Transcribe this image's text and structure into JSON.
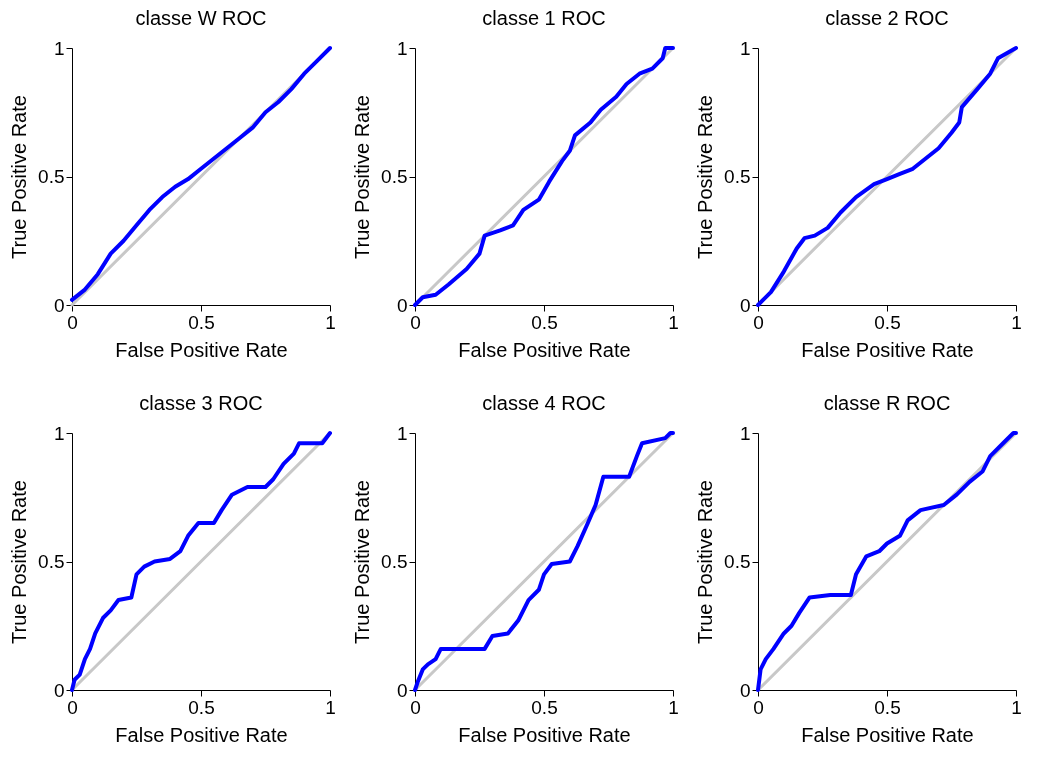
{
  "chart_data": [
    {
      "type": "line",
      "title": "classe W ROC",
      "xlabel": "False Positive Rate",
      "ylabel": "True Positive Rate",
      "xlim": [
        0,
        1
      ],
      "ylim": [
        0,
        1
      ],
      "xticks": [
        0,
        0.5,
        1
      ],
      "yticks": [
        0,
        0.5,
        1
      ],
      "series": [
        {
          "color": "#c8c8c8",
          "x": [
            0,
            1
          ],
          "values": [
            0,
            1
          ]
        },
        {
          "color": "#0000ff",
          "x": [
            0,
            0.05,
            0.1,
            0.15,
            0.2,
            0.25,
            0.3,
            0.35,
            0.4,
            0.45,
            0.5,
            0.55,
            0.6,
            0.65,
            0.7,
            0.75,
            0.8,
            0.85,
            0.9,
            0.95,
            1
          ],
          "values": [
            0.02,
            0.06,
            0.12,
            0.2,
            0.25,
            0.31,
            0.37,
            0.42,
            0.46,
            0.49,
            0.53,
            0.57,
            0.61,
            0.65,
            0.69,
            0.75,
            0.79,
            0.84,
            0.9,
            0.95,
            1
          ]
        }
      ]
    },
    {
      "type": "line",
      "title": "classe 1 ROC",
      "xlabel": "False Positive Rate",
      "ylabel": "True Positive Rate",
      "xlim": [
        0,
        1
      ],
      "ylim": [
        0,
        1
      ],
      "xticks": [
        0,
        0.5,
        1
      ],
      "yticks": [
        0,
        0.5,
        1
      ],
      "series": [
        {
          "color": "#c8c8c8",
          "x": [
            0,
            1
          ],
          "values": [
            0,
            1
          ]
        },
        {
          "color": "#0000ff",
          "x": [
            0,
            0.03,
            0.08,
            0.13,
            0.2,
            0.25,
            0.27,
            0.33,
            0.38,
            0.42,
            0.48,
            0.52,
            0.57,
            0.6,
            0.62,
            0.68,
            0.72,
            0.78,
            0.82,
            0.87,
            0.92,
            0.96,
            0.97,
            1
          ],
          "values": [
            0,
            0.03,
            0.04,
            0.08,
            0.14,
            0.2,
            0.27,
            0.29,
            0.31,
            0.37,
            0.41,
            0.48,
            0.56,
            0.6,
            0.66,
            0.71,
            0.76,
            0.81,
            0.86,
            0.9,
            0.92,
            0.96,
            1,
            1
          ]
        }
      ]
    },
    {
      "type": "line",
      "title": "classe 2 ROC",
      "xlabel": "False Positive Rate",
      "ylabel": "True Positive Rate",
      "xlim": [
        0,
        1
      ],
      "ylim": [
        0,
        1
      ],
      "xticks": [
        0,
        0.5,
        1
      ],
      "yticks": [
        0,
        0.5,
        1
      ],
      "series": [
        {
          "color": "#c8c8c8",
          "x": [
            0,
            1
          ],
          "values": [
            0,
            1
          ]
        },
        {
          "color": "#0000ff",
          "x": [
            0,
            0.05,
            0.1,
            0.15,
            0.18,
            0.22,
            0.27,
            0.32,
            0.38,
            0.45,
            0.5,
            0.55,
            0.6,
            0.65,
            0.7,
            0.75,
            0.78,
            0.79,
            0.85,
            0.9,
            0.93,
            1
          ],
          "values": [
            0,
            0.05,
            0.13,
            0.22,
            0.26,
            0.27,
            0.3,
            0.36,
            0.42,
            0.47,
            0.49,
            0.51,
            0.53,
            0.57,
            0.61,
            0.67,
            0.71,
            0.77,
            0.84,
            0.9,
            0.96,
            1
          ]
        }
      ]
    },
    {
      "type": "line",
      "title": "classe 3 ROC",
      "xlabel": "False Positive Rate",
      "ylabel": "True Positive Rate",
      "xlim": [
        0,
        1
      ],
      "ylim": [
        0,
        1
      ],
      "xticks": [
        0,
        0.5,
        1
      ],
      "yticks": [
        0,
        0.5,
        1
      ],
      "series": [
        {
          "color": "#c8c8c8",
          "x": [
            0,
            1
          ],
          "values": [
            0,
            1
          ]
        },
        {
          "color": "#0000ff",
          "x": [
            0,
            0.01,
            0.03,
            0.05,
            0.07,
            0.09,
            0.12,
            0.15,
            0.18,
            0.23,
            0.25,
            0.28,
            0.32,
            0.38,
            0.42,
            0.45,
            0.49,
            0.55,
            0.58,
            0.62,
            0.68,
            0.75,
            0.78,
            0.82,
            0.86,
            0.88,
            0.97,
            1
          ],
          "values": [
            0,
            0.04,
            0.06,
            0.12,
            0.16,
            0.22,
            0.28,
            0.31,
            0.35,
            0.36,
            0.45,
            0.48,
            0.5,
            0.51,
            0.54,
            0.6,
            0.65,
            0.65,
            0.7,
            0.76,
            0.79,
            0.79,
            0.82,
            0.88,
            0.92,
            0.96,
            0.96,
            1
          ]
        }
      ]
    },
    {
      "type": "line",
      "title": "classe 4 ROC",
      "xlabel": "False Positive Rate",
      "ylabel": "True Positive Rate",
      "xlim": [
        0,
        1
      ],
      "ylim": [
        0,
        1
      ],
      "xticks": [
        0,
        0.5,
        1
      ],
      "yticks": [
        0,
        0.5,
        1
      ],
      "series": [
        {
          "color": "#c8c8c8",
          "x": [
            0,
            1
          ],
          "values": [
            0,
            1
          ]
        },
        {
          "color": "#0000ff",
          "x": [
            0,
            0.01,
            0.03,
            0.05,
            0.08,
            0.1,
            0.27,
            0.3,
            0.36,
            0.4,
            0.44,
            0.48,
            0.5,
            0.53,
            0.6,
            0.63,
            0.67,
            0.7,
            0.73,
            0.83,
            0.86,
            0.88,
            0.97,
            0.99,
            1
          ],
          "values": [
            0,
            0.03,
            0.08,
            0.1,
            0.12,
            0.16,
            0.16,
            0.21,
            0.22,
            0.27,
            0.35,
            0.39,
            0.45,
            0.49,
            0.5,
            0.56,
            0.65,
            0.72,
            0.83,
            0.83,
            0.91,
            0.96,
            0.98,
            1,
            1
          ]
        }
      ]
    },
    {
      "type": "line",
      "title": "classe R ROC",
      "xlabel": "False Positive Rate",
      "ylabel": "True Positive Rate",
      "xlim": [
        0,
        1
      ],
      "ylim": [
        0,
        1
      ],
      "xticks": [
        0,
        0.5,
        1
      ],
      "yticks": [
        0,
        0.5,
        1
      ],
      "series": [
        {
          "color": "#c8c8c8",
          "x": [
            0,
            1
          ],
          "values": [
            0,
            1
          ]
        },
        {
          "color": "#0000ff",
          "x": [
            0,
            0.01,
            0.03,
            0.06,
            0.1,
            0.13,
            0.16,
            0.2,
            0.28,
            0.36,
            0.38,
            0.42,
            0.47,
            0.5,
            0.55,
            0.58,
            0.63,
            0.72,
            0.77,
            0.82,
            0.87,
            0.9,
            0.95,
            0.99,
            1
          ],
          "values": [
            0,
            0.08,
            0.12,
            0.16,
            0.22,
            0.25,
            0.3,
            0.36,
            0.37,
            0.37,
            0.45,
            0.52,
            0.54,
            0.57,
            0.6,
            0.66,
            0.7,
            0.72,
            0.76,
            0.81,
            0.85,
            0.91,
            0.96,
            1,
            1
          ]
        }
      ]
    }
  ]
}
